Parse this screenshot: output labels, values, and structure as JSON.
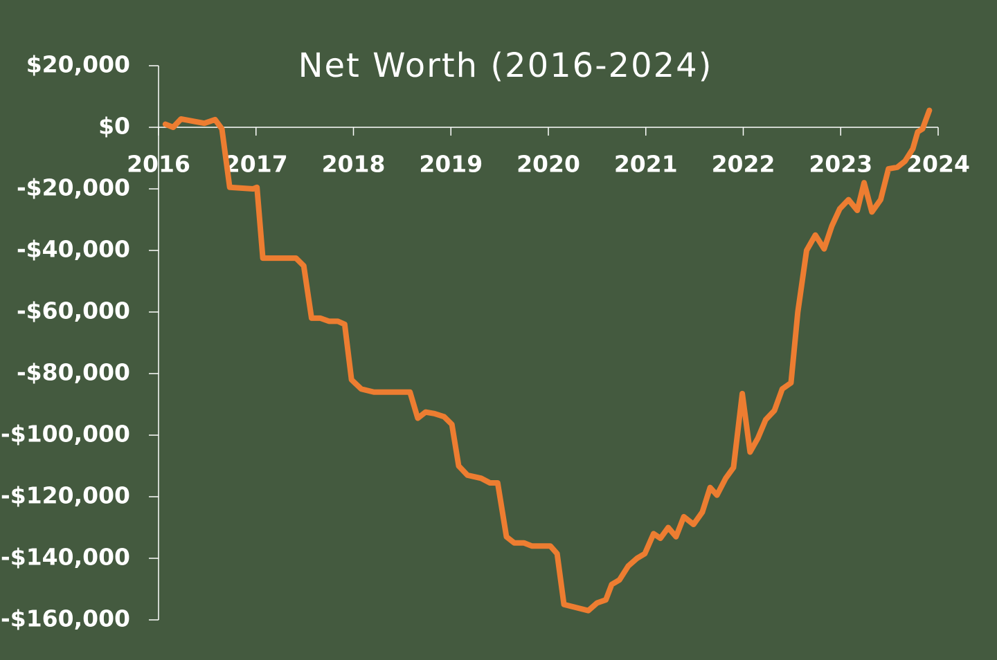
{
  "chart_data": {
    "type": "line",
    "title": "Net Worth (2016-2024)",
    "x": [
      2016.07,
      2016.15,
      2016.23,
      2016.47,
      2016.58,
      2016.65,
      2016.73,
      2016.97,
      2017.01,
      2017.07,
      2017.41,
      2017.49,
      2017.57,
      2017.66,
      2017.75,
      2017.84,
      2017.91,
      2017.98,
      2018.08,
      2018.21,
      2018.58,
      2018.66,
      2018.74,
      2018.83,
      2018.93,
      2019.01,
      2019.08,
      2019.17,
      2019.31,
      2019.4,
      2019.48,
      2019.57,
      2019.65,
      2019.75,
      2019.83,
      2020.02,
      2020.09,
      2020.16,
      2020.41,
      2020.5,
      2020.59,
      2020.65,
      2020.73,
      2020.82,
      2020.91,
      2020.99,
      2021.08,
      2021.15,
      2021.23,
      2021.31,
      2021.39,
      2021.49,
      2021.58,
      2021.66,
      2021.73,
      2021.82,
      2021.9,
      2021.99,
      2022.07,
      2022.15,
      2022.23,
      2022.32,
      2022.4,
      2022.49,
      2022.56,
      2022.65,
      2022.74,
      2022.83,
      2022.91,
      2022.99,
      2023.08,
      2023.17,
      2023.24,
      2023.32,
      2023.41,
      2023.49,
      2023.58,
      2023.66,
      2023.74,
      2023.79,
      2023.84,
      2023.91
    ],
    "series": [
      {
        "color": "#ed7d31",
        "values": [
          1000,
          0,
          2700,
          1300,
          2500,
          -500,
          -19500,
          -20000,
          -19500,
          -42500,
          -42500,
          -45000,
          -62000,
          -62000,
          -63000,
          -63000,
          -64000,
          -82000,
          -85000,
          -86000,
          -86000,
          -94500,
          -92500,
          -93000,
          -94000,
          -96500,
          -110000,
          -113000,
          -114000,
          -115500,
          -115500,
          -133000,
          -135000,
          -135000,
          -136000,
          -136000,
          -138500,
          -155000,
          -157000,
          -154500,
          -153500,
          -148500,
          -147000,
          -142500,
          -140000,
          -138500,
          -132000,
          -133500,
          -130000,
          -133000,
          -126500,
          -129000,
          -125000,
          -117000,
          -119500,
          -114000,
          -110500,
          -86500,
          -105500,
          -101000,
          -95000,
          -92000,
          -85000,
          -83000,
          -60000,
          -40000,
          -35000,
          -39500,
          -32000,
          -26500,
          -23500,
          -27000,
          -18000,
          -27500,
          -23500,
          -13500,
          -13000,
          -11000,
          -7000,
          -1500,
          -500,
          5500
        ]
      }
    ],
    "xlim": [
      2016,
      2024
    ],
    "xticks": [
      2016,
      2017,
      2018,
      2019,
      2020,
      2021,
      2022,
      2023,
      2024
    ],
    "ylim": [
      -160000,
      20000
    ],
    "yticks": [
      {
        "value": -160000,
        "label": "-$160,000"
      },
      {
        "value": -140000,
        "label": "-$140,000"
      },
      {
        "value": -120000,
        "label": "-$120,000"
      },
      {
        "value": -100000,
        "label": "-$100,000"
      },
      {
        "value": -80000,
        "label": "-$80,000"
      },
      {
        "value": -60000,
        "label": "-$60,000"
      },
      {
        "value": -40000,
        "label": "-$40,000"
      },
      {
        "value": -20000,
        "label": "-$20,000"
      },
      {
        "value": 0,
        "label": "$0"
      },
      {
        "value": 20000,
        "label": "$20,000"
      }
    ],
    "grid": false
  }
}
